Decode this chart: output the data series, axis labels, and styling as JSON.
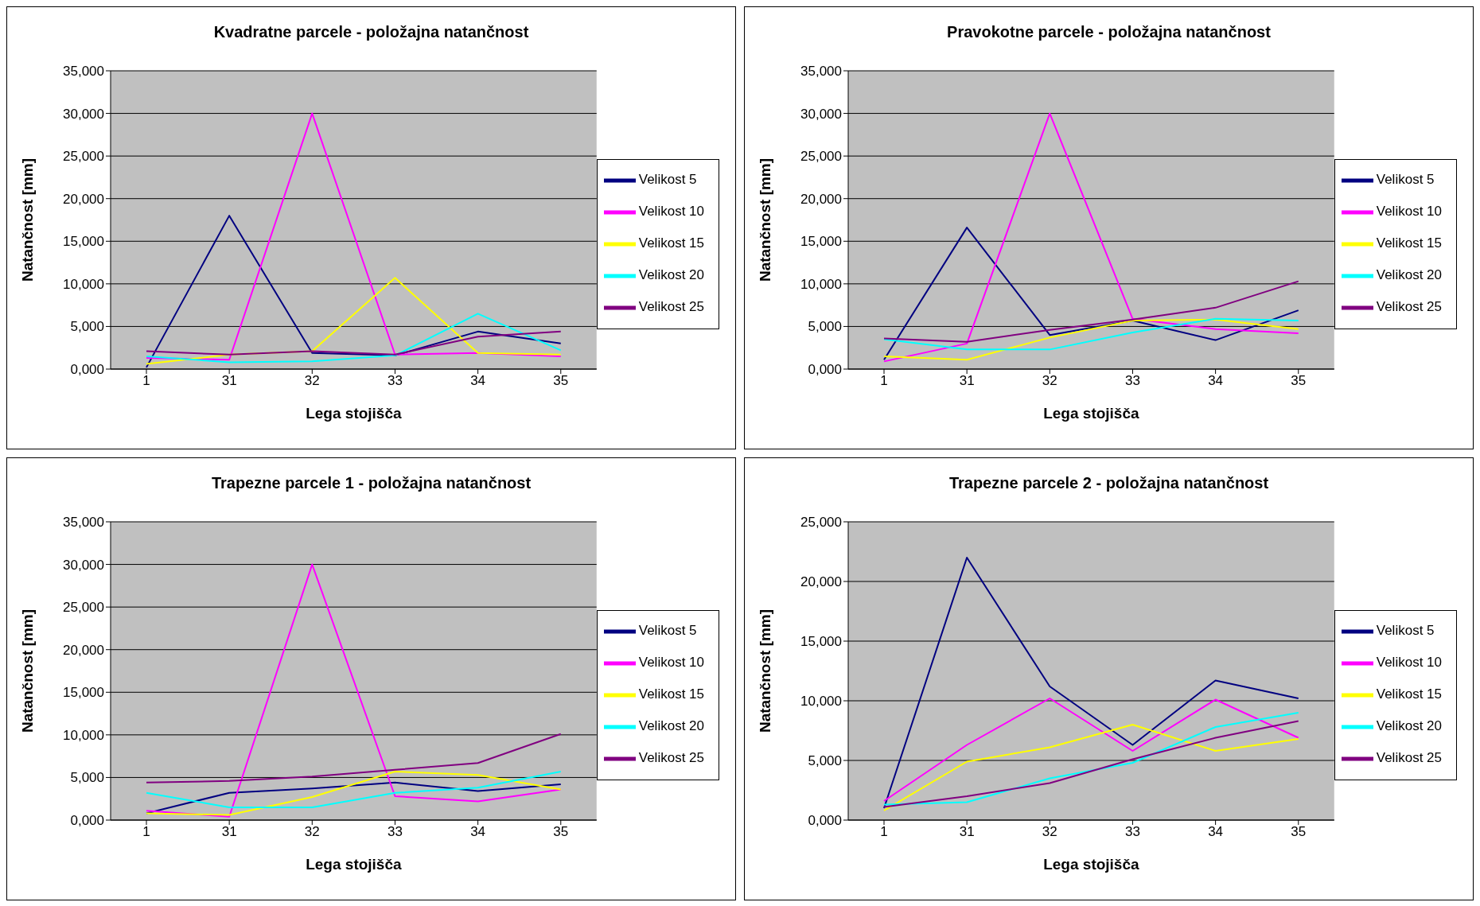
{
  "chart_data": [
    {
      "type": "line",
      "title": "Kvadratne parcele - položajna natančnost",
      "xlabel": "Lega stojišča",
      "ylabel": "Natančnost [mm]",
      "categories": [
        "1",
        "31",
        "32",
        "33",
        "34",
        "35"
      ],
      "ylim": [
        0,
        35
      ],
      "yticks": [
        {
          "value": 0,
          "label": "0,000"
        },
        {
          "value": 5,
          "label": "5,000"
        },
        {
          "value": 10,
          "label": "10,000"
        },
        {
          "value": 15,
          "label": "15,000"
        },
        {
          "value": 20,
          "label": "20,000"
        },
        {
          "value": 25,
          "label": "25,000"
        },
        {
          "value": 30,
          "label": "30,000"
        },
        {
          "value": 35,
          "label": "35,000"
        }
      ],
      "grid": "y",
      "legend": "right",
      "marker": "none",
      "series": [
        {
          "name": "Velikost 5",
          "color": "#000080",
          "values": [
            0.2,
            18.0,
            1.9,
            1.6,
            4.4,
            3.0
          ]
        },
        {
          "name": "Velikost 10",
          "color": "#ff00ff",
          "values": [
            1.3,
            1.1,
            30.0,
            1.7,
            1.9,
            1.5
          ]
        },
        {
          "name": "Velikost 15",
          "color": "#ffff00",
          "values": [
            0.6,
            1.7,
            2.1,
            10.7,
            1.9,
            1.7
          ]
        },
        {
          "name": "Velikost 20",
          "color": "#00ffff",
          "values": [
            1.5,
            0.8,
            0.9,
            1.6,
            6.5,
            2.2
          ]
        },
        {
          "name": "Velikost 25",
          "color": "#800080",
          "values": [
            2.1,
            1.7,
            2.1,
            1.7,
            3.8,
            4.4
          ]
        }
      ]
    },
    {
      "type": "line",
      "title": "Pravokotne parcele - položajna natančnost",
      "xlabel": "Lega stojišča",
      "ylabel": "Natančnost [mm]",
      "categories": [
        "1",
        "31",
        "32",
        "33",
        "34",
        "35"
      ],
      "ylim": [
        0,
        35
      ],
      "yticks": [
        {
          "value": 0,
          "label": "0,000"
        },
        {
          "value": 5,
          "label": "5,000"
        },
        {
          "value": 10,
          "label": "10,000"
        },
        {
          "value": 15,
          "label": "15,000"
        },
        {
          "value": 20,
          "label": "20,000"
        },
        {
          "value": 25,
          "label": "25,000"
        },
        {
          "value": 30,
          "label": "30,000"
        },
        {
          "value": 35,
          "label": "35,000"
        }
      ],
      "grid": "y",
      "legend": "right",
      "marker": "none",
      "series": [
        {
          "name": "Velikost 5",
          "color": "#000080",
          "values": [
            1.1,
            16.6,
            4.0,
            5.7,
            3.4,
            6.9
          ]
        },
        {
          "name": "Velikost 10",
          "color": "#ff00ff",
          "values": [
            0.9,
            3.0,
            30.0,
            5.9,
            4.7,
            4.2
          ]
        },
        {
          "name": "Velikost 15",
          "color": "#ffff00",
          "values": [
            1.5,
            1.1,
            3.7,
            5.7,
            5.8,
            4.7
          ]
        },
        {
          "name": "Velikost 20",
          "color": "#00ffff",
          "values": [
            3.5,
            2.3,
            2.3,
            4.3,
            5.9,
            5.7
          ]
        },
        {
          "name": "Velikost 25",
          "color": "#800080",
          "values": [
            3.6,
            3.2,
            4.6,
            5.8,
            7.2,
            10.3
          ]
        }
      ]
    },
    {
      "type": "line",
      "title": "Trapezne parcele 1 - položajna natančnost",
      "xlabel": "Lega stojišča",
      "ylabel": "Natančnost [mm]",
      "categories": [
        "1",
        "31",
        "32",
        "33",
        "34",
        "35"
      ],
      "ylim": [
        0,
        35
      ],
      "yticks": [
        {
          "value": 0,
          "label": "0,000"
        },
        {
          "value": 5,
          "label": "5,000"
        },
        {
          "value": 10,
          "label": "10,000"
        },
        {
          "value": 15,
          "label": "15,000"
        },
        {
          "value": 20,
          "label": "20,000"
        },
        {
          "value": 25,
          "label": "25,000"
        },
        {
          "value": 30,
          "label": "30,000"
        },
        {
          "value": 35,
          "label": "35,000"
        }
      ],
      "grid": "y",
      "legend": "right",
      "marker": "none",
      "series": [
        {
          "name": "Velikost 5",
          "color": "#000080",
          "values": [
            0.8,
            3.2,
            3.7,
            4.4,
            3.4,
            4.2
          ]
        },
        {
          "name": "Velikost 10",
          "color": "#ff00ff",
          "values": [
            1.1,
            0.4,
            30.0,
            2.8,
            2.2,
            3.6
          ]
        },
        {
          "name": "Velikost 15",
          "color": "#ffff00",
          "values": [
            0.8,
            0.6,
            2.7,
            5.7,
            5.3,
            3.6
          ]
        },
        {
          "name": "Velikost 20",
          "color": "#00ffff",
          "values": [
            3.2,
            1.5,
            1.5,
            3.2,
            3.8,
            5.7
          ]
        },
        {
          "name": "Velikost 25",
          "color": "#800080",
          "values": [
            4.4,
            4.6,
            5.1,
            5.9,
            6.7,
            10.1
          ]
        }
      ]
    },
    {
      "type": "line",
      "title": "Trapezne parcele 2 - položajna natančnost",
      "xlabel": "Lega stojišča",
      "ylabel": "Natančnost [mm]",
      "categories": [
        "1",
        "31",
        "32",
        "33",
        "34",
        "35"
      ],
      "ylim": [
        0,
        25
      ],
      "yticks": [
        {
          "value": 0,
          "label": "0,000"
        },
        {
          "value": 5,
          "label": "5,000"
        },
        {
          "value": 10,
          "label": "10,000"
        },
        {
          "value": 15,
          "label": "15,000"
        },
        {
          "value": 20,
          "label": "20,000"
        },
        {
          "value": 25,
          "label": "25,000"
        }
      ],
      "grid": "y",
      "legend": "right",
      "marker": "none",
      "series": [
        {
          "name": "Velikost 5",
          "color": "#000080",
          "values": [
            1.0,
            22.0,
            11.2,
            6.3,
            11.7,
            10.2
          ]
        },
        {
          "name": "Velikost 10",
          "color": "#ff00ff",
          "values": [
            1.6,
            6.3,
            10.2,
            5.8,
            10.1,
            6.9
          ]
        },
        {
          "name": "Velikost 15",
          "color": "#ffff00",
          "values": [
            0.8,
            4.9,
            6.1,
            8.0,
            5.8,
            6.8
          ]
        },
        {
          "name": "Velikost 20",
          "color": "#00ffff",
          "values": [
            1.3,
            1.5,
            3.5,
            4.8,
            7.8,
            9.0
          ]
        },
        {
          "name": "Velikost 25",
          "color": "#800080",
          "values": [
            1.1,
            2.0,
            3.1,
            5.1,
            6.9,
            8.3
          ]
        }
      ]
    }
  ]
}
